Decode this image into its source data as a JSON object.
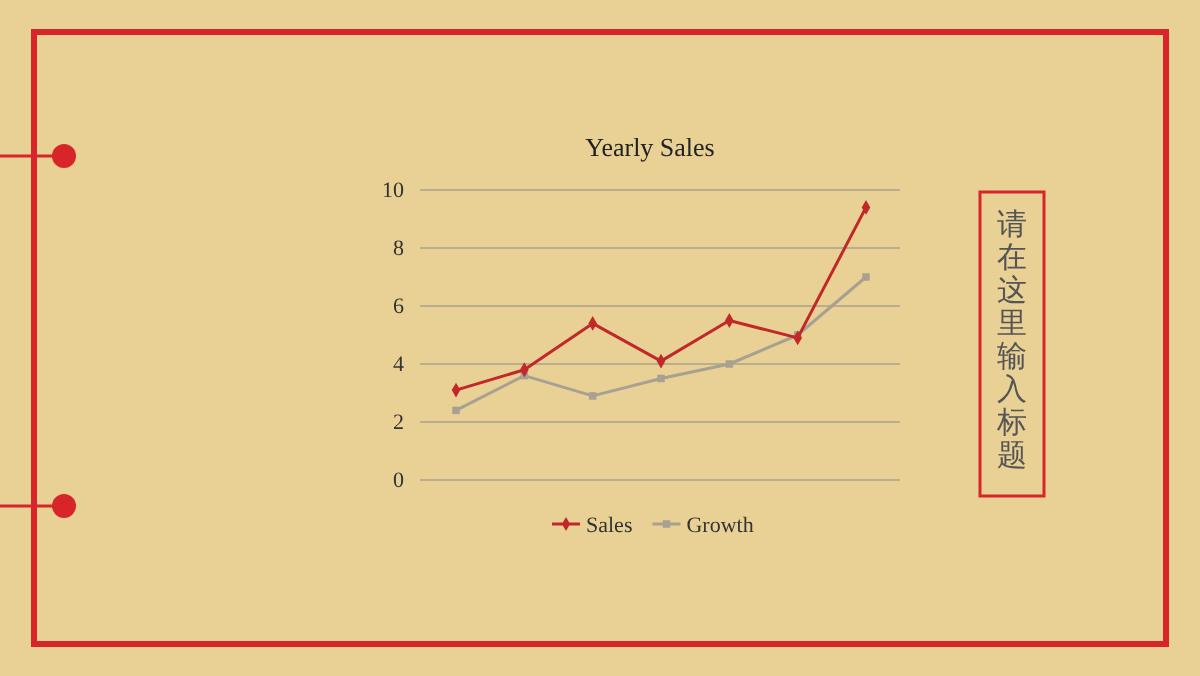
{
  "chart_data": {
    "type": "line",
    "title": "Yearly Sales",
    "categories": [
      null,
      null,
      null,
      null,
      null,
      null,
      null
    ],
    "series": [
      {
        "name": "Sales",
        "color": "#c0282a",
        "marker": "diamond",
        "values": [
          3.1,
          3.8,
          5.4,
          4.1,
          5.5,
          4.9,
          9.4
        ]
      },
      {
        "name": "Growth",
        "color": "#a8a090",
        "marker": "square",
        "values": [
          2.4,
          3.6,
          2.9,
          3.5,
          4.0,
          5.0,
          7.0
        ]
      }
    ],
    "ylim": [
      0,
      10
    ],
    "yticks": [
      0,
      2,
      4,
      6,
      8,
      10
    ],
    "grid": "y",
    "legend": "bottom",
    "line_style": "solid",
    "annotations": [
      "请在这里输入标题"
    ]
  }
}
